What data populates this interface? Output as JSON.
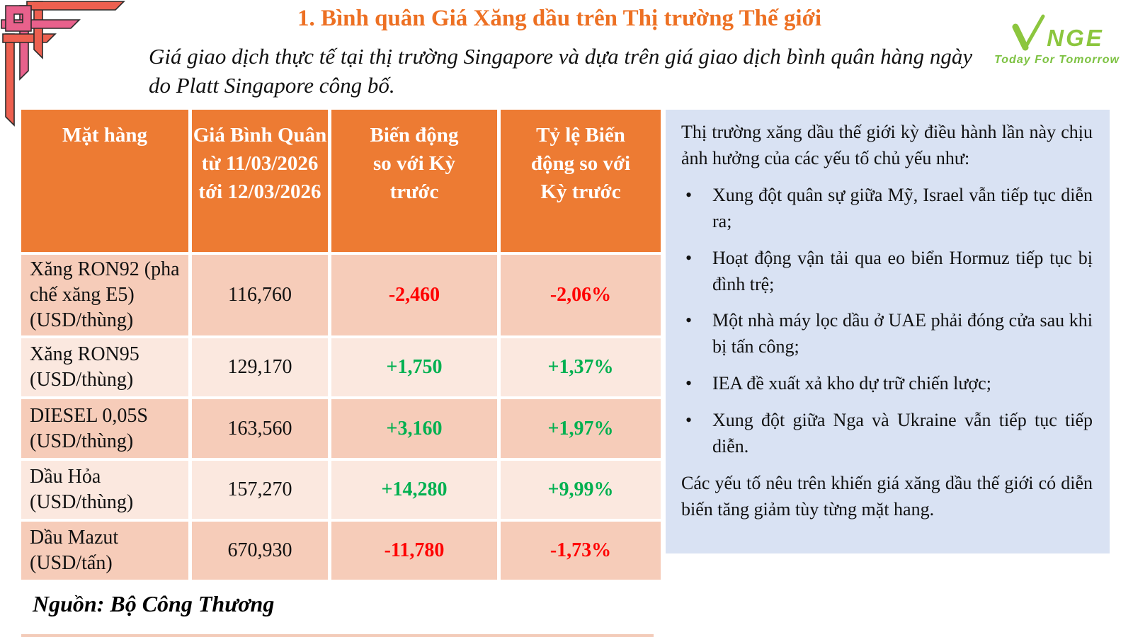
{
  "title": "1. Bình quân Giá Xăng dầu trên Thị trường Thế giới",
  "subtitle": "Giá giao dịch thực tế tại thị trường Singapore và dựa trên giá giao dịch bình quân hàng ngày do Platt Singapore công bố.",
  "logo": {
    "name": "NGE",
    "tagline": "Today For Tomorrow",
    "color": "#8CC63E"
  },
  "table": {
    "headers": [
      "Mặt hàng",
      "Giá Bình Quân từ 11/03/2026 tới 12/03/2026",
      "Biến động so với Kỳ trước",
      "Tỷ lệ Biến động so với Kỳ trước"
    ],
    "rows": [
      {
        "item": "Xăng RON92 (pha chế xăng E5) (USD/thùng)",
        "price": "116,760",
        "change": "-2,460",
        "pct": "-2,06%",
        "trend": "down"
      },
      {
        "item": "Xăng RON95 (USD/thùng)",
        "price": "129,170",
        "change": "+1,750",
        "pct": "+1,37%",
        "trend": "up"
      },
      {
        "item": "DIESEL 0,05S (USD/thùng)",
        "price": "163,560",
        "change": "+3,160",
        "pct": "+1,97%",
        "trend": "up"
      },
      {
        "item": "Dầu Hỏa (USD/thùng)",
        "price": "157,270",
        "change": "+14,280",
        "pct": "+9,99%",
        "trend": "up"
      },
      {
        "item": "Dầu Mazut (USD/tấn)",
        "price": "670,930",
        "change": "-11,780",
        "pct": "-1,73%",
        "trend": "down"
      }
    ]
  },
  "panel": {
    "intro": "Thị trường xăng dầu thế giới kỳ điều hành lần này chịu ảnh hưởng của các yếu tố chủ yếu như:",
    "bullets": [
      "Xung đột quân sự giữa Mỹ, Israel vẫn tiếp tục diễn ra;",
      "Hoạt động vận tải qua eo biển Hormuz tiếp tục bị đình trệ;",
      "Một nhà máy lọc dầu ở UAE phải đóng cửa sau khi bị tấn công;",
      "IEA đề xuất xả kho dự trữ chiến lược;",
      "Xung đột giữa Nga và Ukraine vẫn tiếp tục tiếp diễn."
    ],
    "outro": "Các yếu tố nêu trên khiến giá xăng dầu thế giới có diễn biến tăng giảm tùy từng mặt hang."
  },
  "source": "Nguồn: Bộ Công Thương",
  "colors": {
    "title": "#ED7023",
    "table_header_bg": "#ED7B33",
    "row_dark": "#F6CCB9",
    "row_light": "#FBE8DF",
    "panel_bg": "#D9E2F3",
    "increase": "#00B050",
    "decrease": "#FF0000",
    "ornament_pink": "#E8618C",
    "ornament_coral": "#ED6050"
  }
}
